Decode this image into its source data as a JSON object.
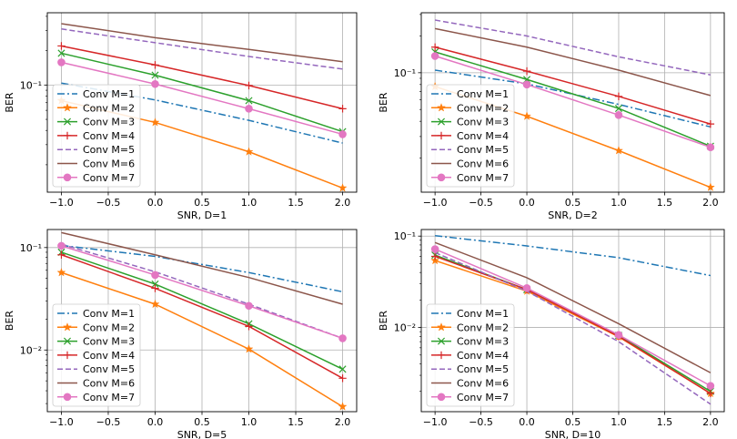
{
  "chart_data": [
    {
      "type": "line",
      "xlabel": "SNR,  D=1",
      "ylabel": "BER",
      "yscale": "log",
      "ylim": [
        0.0115,
        0.43
      ],
      "xlim": [
        -1.15,
        2.15
      ],
      "xticks": [
        -1.0,
        -0.5,
        0.0,
        0.5,
        1.0,
        1.5,
        2.0
      ],
      "xtick_labels": [
        "−1.0",
        "−0.5",
        "0.0",
        "0.5",
        "1.0",
        "1.5",
        "2.0"
      ],
      "yticks": [
        0.1
      ],
      "ytick_labels": [
        "10⁻¹"
      ],
      "x": [
        -1.0,
        0.0,
        1.0,
        2.0
      ],
      "grid": true,
      "legend_position": "lower-left",
      "series": [
        {
          "name": "Conv M=1",
          "values": [
            0.104,
            0.074,
            0.049,
            0.031
          ]
        },
        {
          "name": "Conv M=2",
          "values": [
            0.073,
            0.047,
            0.026,
            0.0125
          ]
        },
        {
          "name": "Conv M=3",
          "values": [
            0.19,
            0.122,
            0.073,
            0.039
          ]
        },
        {
          "name": "Conv M=4",
          "values": [
            0.22,
            0.15,
            0.099,
            0.062
          ]
        },
        {
          "name": "Conv M=5",
          "values": [
            0.31,
            0.235,
            0.178,
            0.138
          ]
        },
        {
          "name": "Conv M=6",
          "values": [
            0.345,
            0.26,
            0.205,
            0.16
          ]
        },
        {
          "name": "Conv M=7",
          "values": [
            0.158,
            0.102,
            0.062,
            0.037
          ]
        }
      ]
    },
    {
      "type": "line",
      "xlabel": "SNR, D=2",
      "ylabel": "BER",
      "yscale": "log",
      "ylim": [
        0.0105,
        0.31
      ],
      "xlim": [
        -1.15,
        2.15
      ],
      "xticks": [
        -1.0,
        -0.5,
        0.0,
        0.5,
        1.0,
        1.5,
        2.0
      ],
      "xtick_labels": [
        "−1.0",
        "−0.5",
        "0.0",
        "0.5",
        "1.0",
        "1.5",
        "2.0"
      ],
      "yticks": [
        0.1
      ],
      "ytick_labels": [
        "10⁻¹"
      ],
      "x": [
        -1.0,
        0.0,
        1.0,
        2.0
      ],
      "grid": true,
      "legend_position": "lower-left",
      "series": [
        {
          "name": "Conv M=1",
          "values": [
            0.105,
            0.081,
            0.055,
            0.036
          ]
        },
        {
          "name": "Conv M=2",
          "values": [
            0.077,
            0.044,
            0.023,
            0.0115
          ]
        },
        {
          "name": "Conv M=3",
          "values": [
            0.148,
            0.088,
            0.051,
            0.025
          ]
        },
        {
          "name": "Conv M=4",
          "values": [
            0.162,
            0.103,
            0.064,
            0.038
          ]
        },
        {
          "name": "Conv M=5",
          "values": [
            0.27,
            0.2,
            0.135,
            0.096
          ]
        },
        {
          "name": "Conv M=6",
          "values": [
            0.23,
            0.162,
            0.105,
            0.065
          ]
        },
        {
          "name": "Conv M=7",
          "values": [
            0.137,
            0.08,
            0.045,
            0.0245
          ]
        }
      ]
    },
    {
      "type": "line",
      "xlabel": "SNR, D=5",
      "ylabel": "BER",
      "yscale": "log",
      "ylim": [
        0.0025,
        0.15
      ],
      "xlim": [
        -1.15,
        2.15
      ],
      "xticks": [
        -1.0,
        -0.5,
        0.0,
        0.5,
        1.0,
        1.5,
        2.0
      ],
      "xtick_labels": [
        "−1.0",
        "−0.5",
        "0.0",
        "0.5",
        "1.0",
        "1.5",
        "2.0"
      ],
      "yticks": [
        0.1,
        0.01
      ],
      "ytick_labels": [
        "10⁻¹",
        "10⁻²"
      ],
      "x": [
        -1.0,
        0.0,
        1.0,
        2.0
      ],
      "grid": true,
      "legend_position": "lower-left",
      "series": [
        {
          "name": "Conv M=1",
          "values": [
            0.105,
            0.082,
            0.057,
            0.037
          ]
        },
        {
          "name": "Conv M=2",
          "values": [
            0.057,
            0.028,
            0.0102,
            0.0028
          ]
        },
        {
          "name": "Conv M=3",
          "values": [
            0.09,
            0.044,
            0.018,
            0.0065
          ]
        },
        {
          "name": "Conv M=4",
          "values": [
            0.085,
            0.04,
            0.017,
            0.0053
          ]
        },
        {
          "name": "Conv M=5",
          "values": [
            0.108,
            0.058,
            0.028,
            0.013
          ]
        },
        {
          "name": "Conv M=6",
          "values": [
            0.14,
            0.085,
            0.051,
            0.028
          ]
        },
        {
          "name": "Conv M=7",
          "values": [
            0.104,
            0.054,
            0.027,
            0.013
          ]
        }
      ]
    },
    {
      "type": "line",
      "xlabel": "SNR, D=10",
      "ylabel": "BER",
      "yscale": "log",
      "ylim": [
        0.0012,
        0.118
      ],
      "xlim": [
        -1.15,
        2.15
      ],
      "xticks": [
        -1.0,
        -0.5,
        0.0,
        0.5,
        1.0,
        1.5,
        2.0
      ],
      "xtick_labels": [
        "−1.0",
        "−0.5",
        "0.0",
        "0.5",
        "1.0",
        "1.5",
        "2.0"
      ],
      "yticks": [
        0.1,
        0.01
      ],
      "ytick_labels": [
        "10⁻¹",
        "10⁻²"
      ],
      "x": [
        -1.0,
        0.0,
        1.0,
        2.0
      ],
      "grid": true,
      "legend_position": "lower-left",
      "series": [
        {
          "name": "Conv M=1",
          "values": [
            0.101,
            0.078,
            0.058,
            0.037
          ]
        },
        {
          "name": "Conv M=2",
          "values": [
            0.054,
            0.025,
            0.0079,
            0.0019
          ]
        },
        {
          "name": "Conv M=3",
          "values": [
            0.062,
            0.026,
            0.0082,
            0.002
          ]
        },
        {
          "name": "Conv M=4",
          "values": [
            0.06,
            0.026,
            0.008,
            0.0019
          ]
        },
        {
          "name": "Conv M=5",
          "values": [
            0.066,
            0.025,
            0.007,
            0.00145
          ]
        },
        {
          "name": "Conv M=6",
          "values": [
            0.085,
            0.035,
            0.011,
            0.0032
          ]
        },
        {
          "name": "Conv M=7",
          "values": [
            0.072,
            0.027,
            0.0083,
            0.0023
          ]
        }
      ]
    }
  ],
  "series_styles": [
    {
      "color": "#1f77b4",
      "dash": "8,3,2,3",
      "marker": "none"
    },
    {
      "color": "#ff7f0e",
      "dash": "",
      "marker": "star"
    },
    {
      "color": "#2ca02c",
      "dash": "",
      "marker": "x"
    },
    {
      "color": "#d62728",
      "dash": "",
      "marker": "plus"
    },
    {
      "color": "#9467bd",
      "dash": "6,3",
      "marker": "none"
    },
    {
      "color": "#8c564b",
      "dash": "",
      "marker": "none"
    },
    {
      "color": "#e377c2",
      "dash": "",
      "marker": "circle"
    }
  ]
}
